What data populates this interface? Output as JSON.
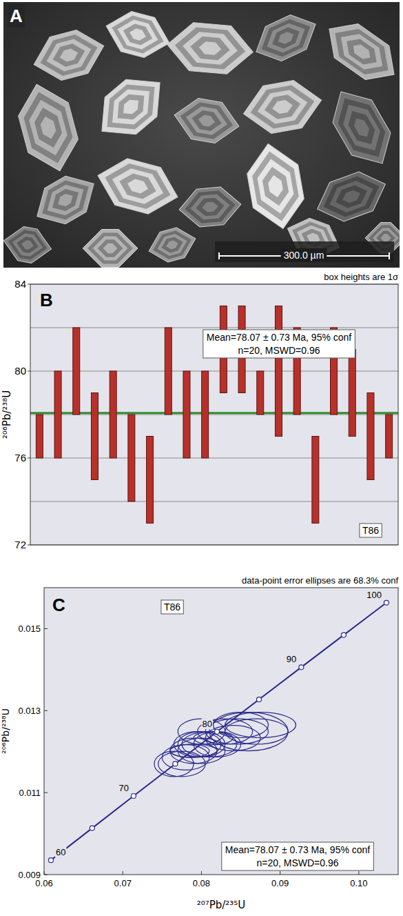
{
  "image_panel": {
    "label": "A",
    "scale_bar": "300.0 µm"
  },
  "chart_data": [
    {
      "type": "errorbar",
      "panel_label": "B",
      "note": "box heights are 1σ",
      "sample_label": "T86",
      "annotation": [
        "Mean=78.07 ± 0.73 Ma, 95% conf",
        "n=20, MSWD=0.96"
      ],
      "y_label": "²⁰⁶Pb/²³⁸U",
      "categories": [
        null,
        null,
        null,
        null,
        null,
        null,
        null,
        null,
        null,
        null,
        null,
        null,
        null,
        null,
        null,
        null,
        null,
        null,
        null,
        null
      ],
      "values": [
        77,
        78,
        80,
        77,
        78,
        76,
        75,
        80,
        78,
        78,
        81,
        81,
        79,
        80,
        80,
        75,
        80,
        79,
        77,
        77
      ],
      "errors": [
        1,
        2,
        2,
        2,
        2,
        2,
        2,
        2,
        2,
        2,
        2,
        2,
        1,
        3,
        2,
        2,
        2,
        2,
        2,
        1
      ],
      "color": "#b8302a",
      "mean_line": {
        "value": 78.07,
        "color": "#2f8f2f"
      },
      "ylim": [
        72,
        84
      ],
      "yticks": [
        72,
        76,
        80,
        84
      ],
      "grid": true,
      "tick_labels": "y"
    },
    {
      "type": "concordia",
      "panel_label": "C",
      "note": "data-point error ellipses are 68.3% conf",
      "sample_label": "T86",
      "annotation": [
        "Mean=78.07 ± 0.73 Ma, 95% conf",
        "n=20, MSWD=0.96"
      ],
      "x_label": "²⁰⁷Pb/²³⁵U",
      "y_label": "²⁰⁶Pb/²³⁸U",
      "xlim": [
        0.06,
        0.105
      ],
      "ylim": [
        0.009,
        0.016
      ],
      "xticks": [
        0.06,
        0.07,
        0.08,
        0.09,
        {
          "value": 0.1,
          "label": "0.10"
        }
      ],
      "yticks": [
        0.009,
        0.011,
        0.013,
        0.015
      ],
      "grid": false,
      "concordia": {
        "x": [
          0.060872,
          0.066109,
          0.071371,
          0.07666,
          0.081975,
          0.087316,
          0.092683,
          0.098077,
          0.103505
        ],
        "y": [
          0.009351,
          0.010134,
          0.010918,
          0.011702,
          0.012487,
          0.013273,
          0.014059,
          0.014846,
          0.015633
        ],
        "labels": [
          60,
          null,
          70,
          null,
          80,
          null,
          90,
          null,
          100
        ],
        "color": "#2a2a8c"
      },
      "ellipses": {
        "x": [
          0.0785,
          0.08,
          0.083,
          0.079,
          0.081,
          0.078,
          0.0765,
          0.0845,
          0.0795,
          0.082,
          0.085,
          0.0875,
          0.0815,
          0.086,
          0.08,
          0.0775,
          0.087,
          0.084,
          0.08,
          0.079
        ],
        "y": [
          0.01202,
          0.01218,
          0.01249,
          0.01202,
          0.01218,
          0.01186,
          0.0117,
          0.01249,
          0.01218,
          0.01218,
          0.01265,
          0.01265,
          0.01233,
          0.01249,
          0.01249,
          0.0117,
          0.01249,
          0.01233,
          0.01202,
          0.01202
        ],
        "x_err": [
          0.0025,
          0.003,
          0.0035,
          0.003,
          0.0035,
          0.003,
          0.0025,
          0.004,
          0.003,
          0.003,
          0.0035,
          0.0045,
          0.0025,
          0.005,
          0.003,
          0.003,
          0.004,
          0.0035,
          0.003,
          0.003
        ],
        "y_err": [
          0.00016,
          0.00031,
          0.00031,
          0.00031,
          0.00031,
          0.00031,
          0.00031,
          0.00031,
          0.00031,
          0.00031,
          0.00031,
          0.00031,
          0.00016,
          0.00047,
          0.00031,
          0.00031,
          0.00031,
          0.00031,
          0.00031,
          0.00016
        ],
        "color": "#2a2a8c"
      }
    }
  ]
}
